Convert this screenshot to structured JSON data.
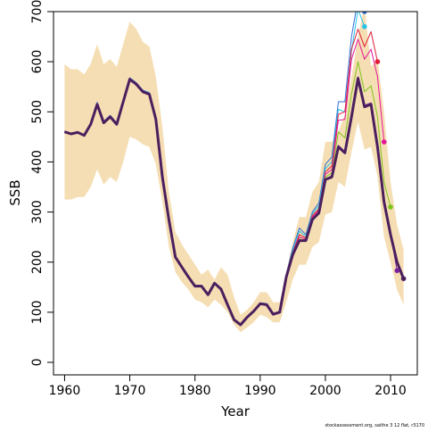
{
  "footer_text": "stockassessment.org, saithe 3 12 flat, r3170",
  "colors": {
    "band": "#f5deb3",
    "final": "#4b1f5e",
    "peels": [
      "#2f6fd6",
      "#28c3e6",
      "#e01e37",
      "#e6169a",
      "#7fc41a",
      "#7b1fa2"
    ]
  },
  "chart_data": {
    "type": "line",
    "title": "",
    "xlabel": "Year",
    "ylabel": "SSB",
    "xlim": [
      1958.3,
      2014.1
    ],
    "ylim": [
      -25,
      700
    ],
    "xticks": [
      1960,
      1970,
      1980,
      1990,
      2000,
      2010
    ],
    "yticks": [
      0,
      100,
      200,
      300,
      400,
      500,
      600,
      700
    ],
    "grid": false,
    "x": [
      1960,
      1961,
      1962,
      1963,
      1964,
      1965,
      1966,
      1967,
      1968,
      1969,
      1970,
      1971,
      1972,
      1973,
      1974,
      1975,
      1976,
      1977,
      1978,
      1979,
      1980,
      1981,
      1982,
      1983,
      1984,
      1985,
      1986,
      1987,
      1988,
      1989,
      1990,
      1991,
      1992,
      1993,
      1994,
      1995,
      1996,
      1997,
      1998,
      1999,
      2000,
      2001,
      2002,
      2003,
      2004,
      2005,
      2006,
      2007,
      2008,
      2009,
      2010,
      2011,
      2012
    ],
    "confidence_band": {
      "upper": [
        595,
        585,
        585,
        575,
        595,
        635,
        595,
        605,
        590,
        635,
        680,
        665,
        640,
        630,
        570,
        470,
        340,
        260,
        235,
        215,
        195,
        175,
        185,
        165,
        190,
        175,
        130,
        95,
        105,
        120,
        140,
        140,
        120,
        120,
        180,
        240,
        290,
        290,
        340,
        360,
        440,
        440,
        460,
        495,
        570,
        650,
        710,
        590,
        605,
        500,
        360,
        275,
        225
      ],
      "lower": [
        325,
        325,
        330,
        330,
        350,
        385,
        355,
        370,
        360,
        400,
        450,
        445,
        435,
        430,
        395,
        320,
        230,
        180,
        160,
        145,
        125,
        120,
        110,
        125,
        115,
        100,
        75,
        60,
        70,
        80,
        95,
        90,
        80,
        80,
        120,
        165,
        195,
        195,
        230,
        240,
        295,
        300,
        360,
        350,
        420,
        480,
        425,
        430,
        370,
        250,
        200,
        145,
        115
      ]
    },
    "series": [
      {
        "name": "",
        "color_key": "final",
        "values": [
          460,
          456,
          459,
          453,
          475,
          515,
          478,
          490,
          475,
          520,
          565,
          555,
          540,
          535,
          485,
          370,
          285,
          210,
          190,
          170,
          152,
          152,
          135,
          158,
          146,
          115,
          85,
          75,
          90,
          102,
          117,
          115,
          96,
          100,
          170,
          215,
          243,
          243,
          285,
          298,
          365,
          370,
          430,
          418,
          490,
          567,
          510,
          515,
          430,
          320,
          255,
          200,
          167
        ]
      },
      {
        "name": "",
        "color_key": "peel0",
        "values": [
          461,
          457,
          460,
          454,
          477,
          519,
          481,
          493,
          478,
          523,
          568,
          558,
          543,
          538,
          488,
          373,
          287,
          212,
          192,
          172,
          154,
          154,
          137,
          160,
          148,
          117,
          86,
          76,
          91,
          104,
          119,
          117,
          98,
          102,
          175,
          228,
          268,
          255,
          300,
          318,
          395,
          410,
          520,
          520,
          650,
          725,
          700,
          null,
          null,
          null,
          null,
          null,
          null
        ]
      },
      {
        "name": "",
        "color_key": "peel1",
        "values": [
          461,
          457,
          460,
          454,
          476,
          517,
          480,
          492,
          477,
          522,
          567,
          557,
          542,
          537,
          487,
          372,
          286,
          211,
          191,
          171,
          153,
          153,
          136,
          159,
          147,
          116,
          85,
          75,
          90,
          103,
          118,
          116,
          97,
          101,
          173,
          224,
          262,
          251,
          296,
          312,
          387,
          400,
          505,
          500,
          620,
          705,
          670,
          null,
          null,
          null,
          null,
          null,
          null
        ]
      },
      {
        "name": "",
        "color_key": "peel2",
        "values": [
          461,
          457,
          460,
          454,
          476,
          516,
          479,
          491,
          476,
          521,
          566,
          556,
          541,
          536,
          486,
          371,
          285,
          211,
          191,
          171,
          153,
          153,
          136,
          159,
          147,
          116,
          85,
          75,
          90,
          103,
          118,
          116,
          97,
          101,
          172,
          220,
          255,
          248,
          293,
          306,
          380,
          392,
          495,
          500,
          625,
          665,
          630,
          660,
          600,
          null,
          null,
          null,
          null
        ]
      },
      {
        "name": "",
        "color_key": "peel3",
        "values": [
          460,
          456,
          459,
          453,
          475,
          515,
          478,
          490,
          475,
          520,
          565,
          555,
          540,
          535,
          485,
          370,
          285,
          210,
          190,
          170,
          152,
          152,
          135,
          158,
          146,
          115,
          85,
          75,
          90,
          102,
          117,
          115,
          96,
          100,
          171,
          218,
          250,
          246,
          290,
          303,
          375,
          385,
          483,
          485,
          605,
          645,
          605,
          625,
          570,
          440,
          null,
          null,
          null
        ]
      },
      {
        "name": "",
        "color_key": "peel4",
        "values": [
          460,
          456,
          459,
          453,
          475,
          515,
          478,
          490,
          475,
          520,
          565,
          555,
          540,
          535,
          485,
          370,
          285,
          210,
          190,
          170,
          152,
          152,
          135,
          158,
          146,
          115,
          85,
          75,
          90,
          102,
          117,
          115,
          96,
          100,
          170,
          216,
          246,
          244,
          287,
          300,
          370,
          378,
          460,
          448,
          535,
          600,
          540,
          552,
          490,
          360,
          310,
          null,
          null
        ]
      },
      {
        "name": "",
        "color_key": "peel5",
        "values": [
          460,
          456,
          459,
          453,
          475,
          515,
          478,
          490,
          475,
          520,
          565,
          555,
          540,
          535,
          485,
          370,
          285,
          210,
          190,
          170,
          152,
          152,
          135,
          158,
          146,
          115,
          85,
          75,
          90,
          102,
          117,
          115,
          96,
          100,
          170,
          215,
          243,
          243,
          285,
          298,
          366,
          372,
          433,
          421,
          495,
          570,
          513,
          518,
          433,
          322,
          257,
          183,
          null
        ]
      }
    ],
    "endpoints": [
      {
        "x": 2006,
        "y": 700,
        "color_key": "peel0"
      },
      {
        "x": 2006,
        "y": 670,
        "color_key": "peel1"
      },
      {
        "x": 2008,
        "y": 600,
        "color_key": "peel2"
      },
      {
        "x": 2009,
        "y": 440,
        "color_key": "peel3"
      },
      {
        "x": 2010,
        "y": 310,
        "color_key": "peel4"
      },
      {
        "x": 2011,
        "y": 183,
        "color_key": "peel5"
      },
      {
        "x": 2012,
        "y": 167,
        "color_key": "final"
      }
    ]
  }
}
